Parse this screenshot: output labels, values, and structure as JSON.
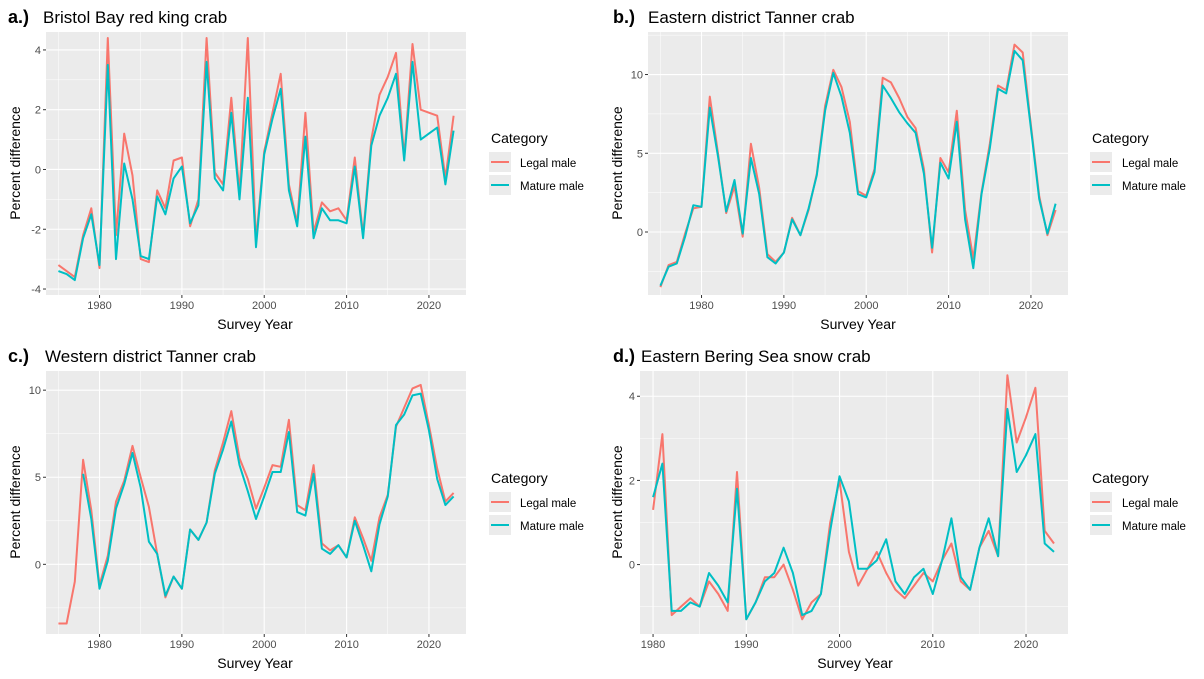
{
  "figure": {
    "legend_placement": "right",
    "grid": true
  },
  "chart_data": [
    {
      "type": "line",
      "panel_letter": "a.)",
      "title": "Bristol Bay red king crab",
      "xlabel": "Survey Year",
      "ylabel": "Percent difference",
      "xlim": [
        1973.5,
        2024.5
      ],
      "ylim": [
        -4.2,
        4.6
      ],
      "xticks": [
        1980,
        1990,
        2000,
        2010,
        2020
      ],
      "yticks": [
        -4,
        -2,
        0,
        2,
        4
      ],
      "legend": {
        "title": "Category",
        "entries": [
          "Legal male",
          "Mature male"
        ]
      },
      "series": [
        {
          "name": "Legal male",
          "color": "#F8766D",
          "x": [
            1975,
            1976,
            1977,
            1978,
            1979,
            1980,
            1981,
            1982,
            1983,
            1984,
            1985,
            1986,
            1987,
            1988,
            1989,
            1990,
            1991,
            1992,
            1993,
            1994,
            1995,
            1996,
            1997,
            1998,
            1999,
            2000,
            2001,
            2002,
            2003,
            2004,
            2005,
            2006,
            2007,
            2008,
            2009,
            2010,
            2011,
            2012,
            2013,
            2014,
            2015,
            2016,
            2017,
            2018,
            2019,
            2020,
            2021,
            2022,
            2023
          ],
          "y": [
            -3.2,
            -3.4,
            -3.6,
            -2.2,
            -1.3,
            -3.3,
            4.4,
            -2.2,
            1.2,
            -0.2,
            -3.0,
            -3.1,
            -0.7,
            -1.3,
            0.3,
            0.4,
            -1.9,
            -1.0,
            4.4,
            -0.1,
            -0.5,
            2.4,
            -0.8,
            4.4,
            -2.4,
            0.6,
            1.9,
            3.2,
            -0.5,
            -1.8,
            1.9,
            -2.1,
            -1.1,
            -1.4,
            -1.3,
            -1.7,
            0.4,
            -2.2,
            1.0,
            2.5,
            3.1,
            3.9,
            0.4,
            4.2,
            2.0,
            1.9,
            1.8,
            -0.3,
            1.8
          ]
        },
        {
          "name": "Mature male",
          "color": "#00BFC4",
          "x": [
            1975,
            1976,
            1977,
            1978,
            1979,
            1980,
            1981,
            1982,
            1983,
            1984,
            1985,
            1986,
            1987,
            1988,
            1989,
            1990,
            1991,
            1992,
            1993,
            1994,
            1995,
            1996,
            1997,
            1998,
            1999,
            2000,
            2001,
            2002,
            2003,
            2004,
            2005,
            2006,
            2007,
            2008,
            2009,
            2010,
            2011,
            2012,
            2013,
            2014,
            2015,
            2016,
            2017,
            2018,
            2019,
            2020,
            2021,
            2022,
            2023
          ],
          "y": [
            -3.4,
            -3.5,
            -3.7,
            -2.3,
            -1.5,
            -3.2,
            3.5,
            -3.0,
            0.2,
            -1.0,
            -2.9,
            -3.0,
            -0.9,
            -1.5,
            -0.3,
            0.1,
            -1.8,
            -1.2,
            3.6,
            -0.3,
            -0.7,
            1.9,
            -1.0,
            2.4,
            -2.6,
            0.5,
            1.7,
            2.7,
            -0.7,
            -1.9,
            1.1,
            -2.3,
            -1.3,
            -1.7,
            -1.7,
            -1.8,
            0.1,
            -2.3,
            0.8,
            1.8,
            2.4,
            3.2,
            0.3,
            3.6,
            1.0,
            1.2,
            1.4,
            -0.5,
            1.3
          ]
        }
      ]
    },
    {
      "type": "line",
      "panel_letter": "b.)",
      "title": "Eastern district Tanner crab",
      "xlabel": "Survey Year",
      "ylabel": "Percent difference",
      "xlim": [
        1973.5,
        2024.5
      ],
      "ylim": [
        -4.0,
        12.7
      ],
      "xticks": [
        1980,
        1990,
        2000,
        2010,
        2020
      ],
      "yticks": [
        0,
        5,
        10
      ],
      "legend": {
        "title": "Category",
        "entries": [
          "Legal male",
          "Mature male"
        ]
      },
      "series": [
        {
          "name": "Legal male",
          "color": "#F8766D",
          "x": [
            1975,
            1976,
            1977,
            1978,
            1979,
            1980,
            1981,
            1982,
            1983,
            1984,
            1985,
            1986,
            1987,
            1988,
            1989,
            1990,
            1991,
            1992,
            1993,
            1994,
            1995,
            1996,
            1997,
            1998,
            1999,
            2000,
            2001,
            2002,
            2003,
            2004,
            2005,
            2006,
            2007,
            2008,
            2009,
            2010,
            2011,
            2012,
            2013,
            2014,
            2015,
            2016,
            2017,
            2018,
            2019,
            2020,
            2021,
            2022,
            2023
          ],
          "y": [
            -3.5,
            -2.1,
            -1.9,
            -0.1,
            1.5,
            1.6,
            8.6,
            5.0,
            1.2,
            2.9,
            -0.3,
            5.6,
            2.8,
            -1.4,
            -1.9,
            -1.3,
            0.9,
            -0.2,
            1.4,
            3.7,
            8.0,
            10.3,
            9.2,
            7.0,
            2.6,
            2.3,
            4.0,
            9.8,
            9.5,
            8.5,
            7.3,
            6.6,
            4.0,
            -1.3,
            4.7,
            3.8,
            7.7,
            1.4,
            -1.7,
            2.5,
            5.6,
            9.3,
            9.0,
            11.9,
            11.4,
            6.8,
            2.3,
            -0.2,
            1.4
          ]
        },
        {
          "name": "Mature male",
          "color": "#00BFC4",
          "x": [
            1975,
            1976,
            1977,
            1978,
            1979,
            1980,
            1981,
            1982,
            1983,
            1984,
            1985,
            1986,
            1987,
            1988,
            1989,
            1990,
            1991,
            1992,
            1993,
            1994,
            1995,
            1996,
            1997,
            1998,
            1999,
            2000,
            2001,
            2002,
            2003,
            2004,
            2005,
            2006,
            2007,
            2008,
            2009,
            2010,
            2011,
            2012,
            2013,
            2014,
            2015,
            2016,
            2017,
            2018,
            2019,
            2020,
            2021,
            2022,
            2023
          ],
          "y": [
            -3.4,
            -2.2,
            -2.0,
            -0.3,
            1.7,
            1.6,
            7.9,
            4.8,
            1.3,
            3.3,
            -0.1,
            4.7,
            2.4,
            -1.6,
            -2.0,
            -1.3,
            0.8,
            -0.2,
            1.5,
            3.6,
            7.7,
            10.1,
            8.6,
            6.3,
            2.4,
            2.2,
            3.8,
            9.3,
            8.5,
            7.6,
            6.9,
            6.3,
            3.7,
            -1.0,
            4.4,
            3.4,
            7.0,
            0.8,
            -2.3,
            2.4,
            5.3,
            9.1,
            8.8,
            11.5,
            10.9,
            6.6,
            2.1,
            -0.1,
            1.8
          ]
        }
      ]
    },
    {
      "type": "line",
      "panel_letter": "c.)",
      "title": "Western district Tanner crab",
      "xlabel": "Survey Year",
      "ylabel": "Percent difference",
      "xlim": [
        1973.5,
        2024.5
      ],
      "ylim": [
        -4.0,
        11.1
      ],
      "xticks": [
        1980,
        1990,
        2000,
        2010,
        2020
      ],
      "yticks": [
        0,
        5,
        10
      ],
      "legend": {
        "title": "Category",
        "entries": [
          "Legal male",
          "Mature male"
        ]
      },
      "series": [
        {
          "name": "Legal male",
          "color": "#F8766D",
          "x": [
            1975,
            1976,
            1977,
            1978,
            1979,
            1980,
            1981,
            1982,
            1983,
            1984,
            1985,
            1986,
            1987,
            1988,
            1989,
            1990,
            1991,
            1992,
            1993,
            1994,
            1995,
            1996,
            1997,
            1998,
            1999,
            2000,
            2001,
            2002,
            2003,
            2004,
            2005,
            2006,
            2007,
            2008,
            2009,
            2010,
            2011,
            2012,
            2013,
            2014,
            2015,
            2016,
            2017,
            2018,
            2019,
            2020,
            2021,
            2022,
            2023
          ],
          "y": [
            -3.4,
            -3.4,
            -1.0,
            6.0,
            3.1,
            -1.2,
            0.5,
            3.6,
            4.8,
            6.8,
            5.0,
            3.3,
            0.6,
            -1.9,
            -0.7,
            -1.4,
            2.0,
            1.4,
            2.4,
            5.4,
            7.0,
            8.8,
            6.1,
            4.9,
            3.2,
            4.4,
            5.7,
            5.6,
            8.3,
            3.4,
            3.1,
            5.7,
            1.2,
            0.8,
            1.1,
            0.4,
            2.7,
            1.5,
            0.2,
            2.7,
            4.0,
            7.9,
            9.0,
            10.1,
            10.3,
            8.0,
            5.5,
            3.6,
            4.1
          ]
        },
        {
          "name": "Mature male",
          "color": "#00BFC4",
          "x": [
            1978,
            1979,
            1980,
            1981,
            1982,
            1983,
            1984,
            1985,
            1986,
            1987,
            1988,
            1989,
            1990,
            1991,
            1992,
            1993,
            1994,
            1995,
            1996,
            1997,
            1998,
            1999,
            2000,
            2001,
            2002,
            2003,
            2004,
            2005,
            2006,
            2007,
            2008,
            2009,
            2010,
            2011,
            2012,
            2013,
            2014,
            2015,
            2016,
            2017,
            2018,
            2019,
            2020,
            2021,
            2022,
            2023
          ],
          "y": [
            5.2,
            2.6,
            -1.4,
            0.2,
            3.2,
            4.6,
            6.4,
            4.4,
            1.3,
            0.6,
            -1.8,
            -0.7,
            -1.4,
            2.0,
            1.4,
            2.4,
            5.2,
            6.6,
            8.2,
            5.7,
            4.2,
            2.6,
            3.9,
            5.3,
            5.3,
            7.6,
            3.0,
            2.8,
            5.2,
            0.9,
            0.6,
            1.1,
            0.4,
            2.5,
            1.1,
            -0.4,
            2.3,
            3.9,
            8.0,
            8.6,
            9.7,
            9.8,
            7.7,
            4.9,
            3.4,
            3.9
          ]
        }
      ]
    },
    {
      "type": "line",
      "panel_letter": "d.)",
      "title": "Eastern Bering Sea snow crab",
      "xlabel": "Survey Year",
      "ylabel": "Percent difference",
      "xlim": [
        1978.6,
        2024.5
      ],
      "ylim": [
        -1.65,
        4.6
      ],
      "xticks": [
        1980,
        1990,
        2000,
        2010,
        2020
      ],
      "yticks": [
        0,
        2,
        4
      ],
      "legend": {
        "title": "Category",
        "entries": [
          "Legal male",
          "Mature male"
        ]
      },
      "series": [
        {
          "name": "Legal male",
          "color": "#F8766D",
          "x": [
            1980,
            1981,
            1982,
            1983,
            1984,
            1985,
            1986,
            1987,
            1988,
            1989,
            1990,
            1991,
            1992,
            1993,
            1994,
            1995,
            1996,
            1997,
            1998,
            1999,
            2000,
            2001,
            2002,
            2003,
            2004,
            2005,
            2006,
            2007,
            2008,
            2009,
            2010,
            2011,
            2012,
            2013,
            2014,
            2015,
            2016,
            2017,
            2018,
            2019,
            2020,
            2021,
            2022,
            2023
          ],
          "y": [
            1.3,
            3.1,
            -1.2,
            -1.0,
            -0.8,
            -1.0,
            -0.4,
            -0.7,
            -1.1,
            2.2,
            -1.3,
            -0.9,
            -0.3,
            -0.3,
            0.0,
            -0.6,
            -1.3,
            -0.9,
            -0.7,
            1.0,
            2.0,
            0.3,
            -0.5,
            -0.1,
            0.3,
            -0.2,
            -0.6,
            -0.8,
            -0.5,
            -0.2,
            -0.4,
            0.1,
            0.5,
            -0.4,
            -0.6,
            0.4,
            0.8,
            0.2,
            4.5,
            2.9,
            3.5,
            4.2,
            0.8,
            0.5
          ]
        },
        {
          "name": "Mature male",
          "color": "#00BFC4",
          "x": [
            1980,
            1981,
            1982,
            1983,
            1984,
            1985,
            1986,
            1987,
            1988,
            1989,
            1990,
            1991,
            1992,
            1993,
            1994,
            1995,
            1996,
            1997,
            1998,
            1999,
            2000,
            2001,
            2002,
            2003,
            2004,
            2005,
            2006,
            2007,
            2008,
            2009,
            2010,
            2011,
            2012,
            2013,
            2014,
            2015,
            2016,
            2017,
            2018,
            2019,
            2020,
            2021,
            2022,
            2023
          ],
          "y": [
            1.6,
            2.4,
            -1.1,
            -1.1,
            -0.9,
            -1.0,
            -0.2,
            -0.5,
            -0.9,
            1.8,
            -1.3,
            -0.9,
            -0.4,
            -0.2,
            0.4,
            -0.2,
            -1.2,
            -1.1,
            -0.7,
            0.8,
            2.1,
            1.5,
            -0.1,
            -0.1,
            0.1,
            0.6,
            -0.4,
            -0.7,
            -0.3,
            -0.1,
            -0.7,
            0.1,
            1.1,
            -0.3,
            -0.6,
            0.4,
            1.1,
            0.2,
            3.7,
            2.2,
            2.6,
            3.1,
            0.5,
            0.3
          ]
        }
      ]
    }
  ]
}
